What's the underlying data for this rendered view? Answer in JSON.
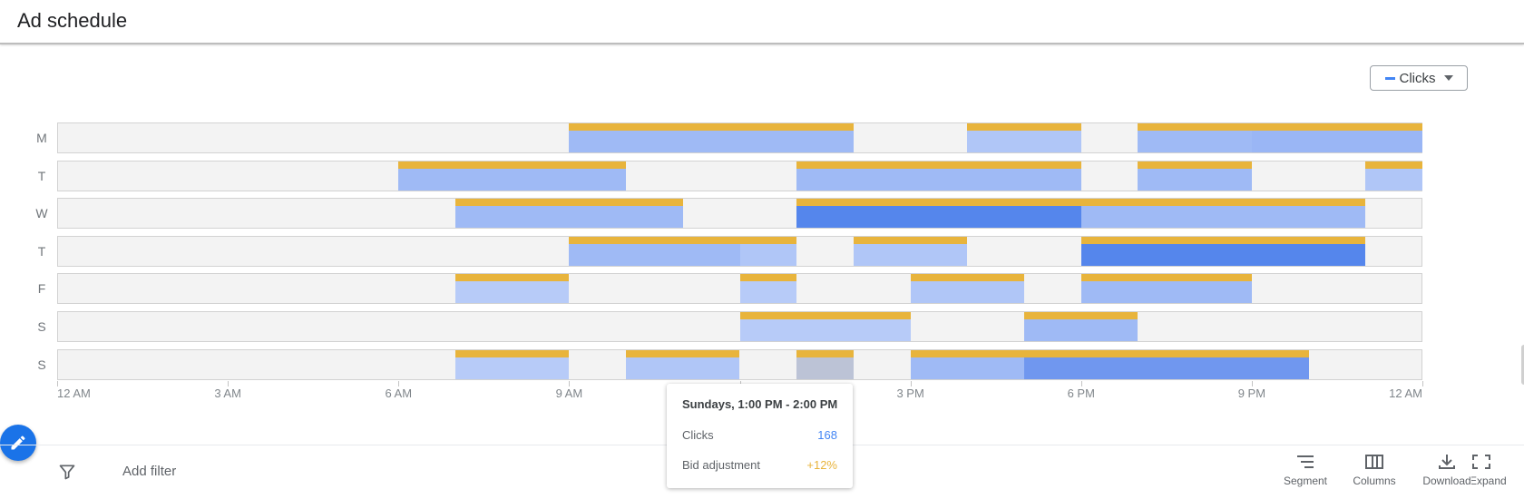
{
  "header": {
    "title": "Ad schedule"
  },
  "metric_select": {
    "label": "Clicks",
    "swatch_color": "#4285f4"
  },
  "chart_data": {
    "type": "heatmap",
    "days": [
      "M",
      "T",
      "W",
      "T",
      "F",
      "S",
      "S"
    ],
    "x_ticks": [
      "12 AM",
      "3 AM",
      "6 AM",
      "9 AM",
      "12 PM",
      "3 PM",
      "6 PM",
      "9 PM",
      "12 AM"
    ],
    "x_range_hours": [
      0,
      24
    ],
    "metric": "Clicks",
    "cells": [
      {
        "day": 0,
        "start": 9,
        "end": 12,
        "level": 2
      },
      {
        "day": 0,
        "start": 12,
        "end": 14,
        "level": 2
      },
      {
        "day": 0,
        "start": 16,
        "end": 18,
        "level": 1
      },
      {
        "day": 0,
        "start": 19,
        "end": 21,
        "level": 2
      },
      {
        "day": 0,
        "start": 21,
        "end": 24,
        "level": 3
      },
      {
        "day": 1,
        "start": 6,
        "end": 10,
        "level": 2
      },
      {
        "day": 1,
        "start": 13,
        "end": 16,
        "level": 2
      },
      {
        "day": 1,
        "start": 16,
        "end": 18,
        "level": 2
      },
      {
        "day": 1,
        "start": 19,
        "end": 21,
        "level": 2
      },
      {
        "day": 1,
        "start": 23,
        "end": 24,
        "level": 1
      },
      {
        "day": 2,
        "start": 7,
        "end": 11,
        "level": 2
      },
      {
        "day": 2,
        "start": 13,
        "end": 18,
        "level": 5
      },
      {
        "day": 2,
        "start": 18,
        "end": 22,
        "level": 2
      },
      {
        "day": 2,
        "start": 22,
        "end": 23,
        "level": 2
      },
      {
        "day": 3,
        "start": 9,
        "end": 12,
        "level": 2
      },
      {
        "day": 3,
        "start": 12,
        "end": 13,
        "level": 1
      },
      {
        "day": 3,
        "start": 14,
        "end": 16,
        "level": 1
      },
      {
        "day": 3,
        "start": 18,
        "end": 23,
        "level": 5
      },
      {
        "day": 4,
        "start": 7,
        "end": 9,
        "level": 0
      },
      {
        "day": 4,
        "start": 12,
        "end": 13,
        "level": 0
      },
      {
        "day": 4,
        "start": 15,
        "end": 17,
        "level": 1
      },
      {
        "day": 4,
        "start": 18,
        "end": 21,
        "level": 2
      },
      {
        "day": 5,
        "start": 12,
        "end": 13,
        "level": 0
      },
      {
        "day": 5,
        "start": 13,
        "end": 15,
        "level": 0
      },
      {
        "day": 5,
        "start": 17,
        "end": 19,
        "level": 2
      },
      {
        "day": 6,
        "start": 7,
        "end": 9,
        "level": 0
      },
      {
        "day": 6,
        "start": 10,
        "end": 12,
        "level": 1
      },
      {
        "day": 6,
        "start": 13,
        "end": 14,
        "level": "selected"
      },
      {
        "day": 6,
        "start": 15,
        "end": 17,
        "level": 2
      },
      {
        "day": 6,
        "start": 17,
        "end": 22,
        "level": 4
      }
    ],
    "level_colors": [
      "#b7cbf8",
      "#b0c6f7",
      "#9fbaf5",
      "#9ab6f5",
      "#7097ef",
      "#5586ec"
    ],
    "selected_color": "#bcc3d6",
    "bid_bar_color": "#e8b43c"
  },
  "tooltip": {
    "title": "Sundays, 1:00 PM - 2:00 PM",
    "rows": [
      {
        "label": "Clicks",
        "value": "168",
        "color": "#4285f4"
      },
      {
        "label": "Bid adjustment",
        "value": "+12%",
        "color": "#e8b43c"
      }
    ]
  },
  "filter_bar": {
    "add_filter": "Add filter"
  },
  "toolbar": {
    "segment": "Segment",
    "columns": "Columns",
    "download": "Download",
    "expand": "Expand"
  }
}
